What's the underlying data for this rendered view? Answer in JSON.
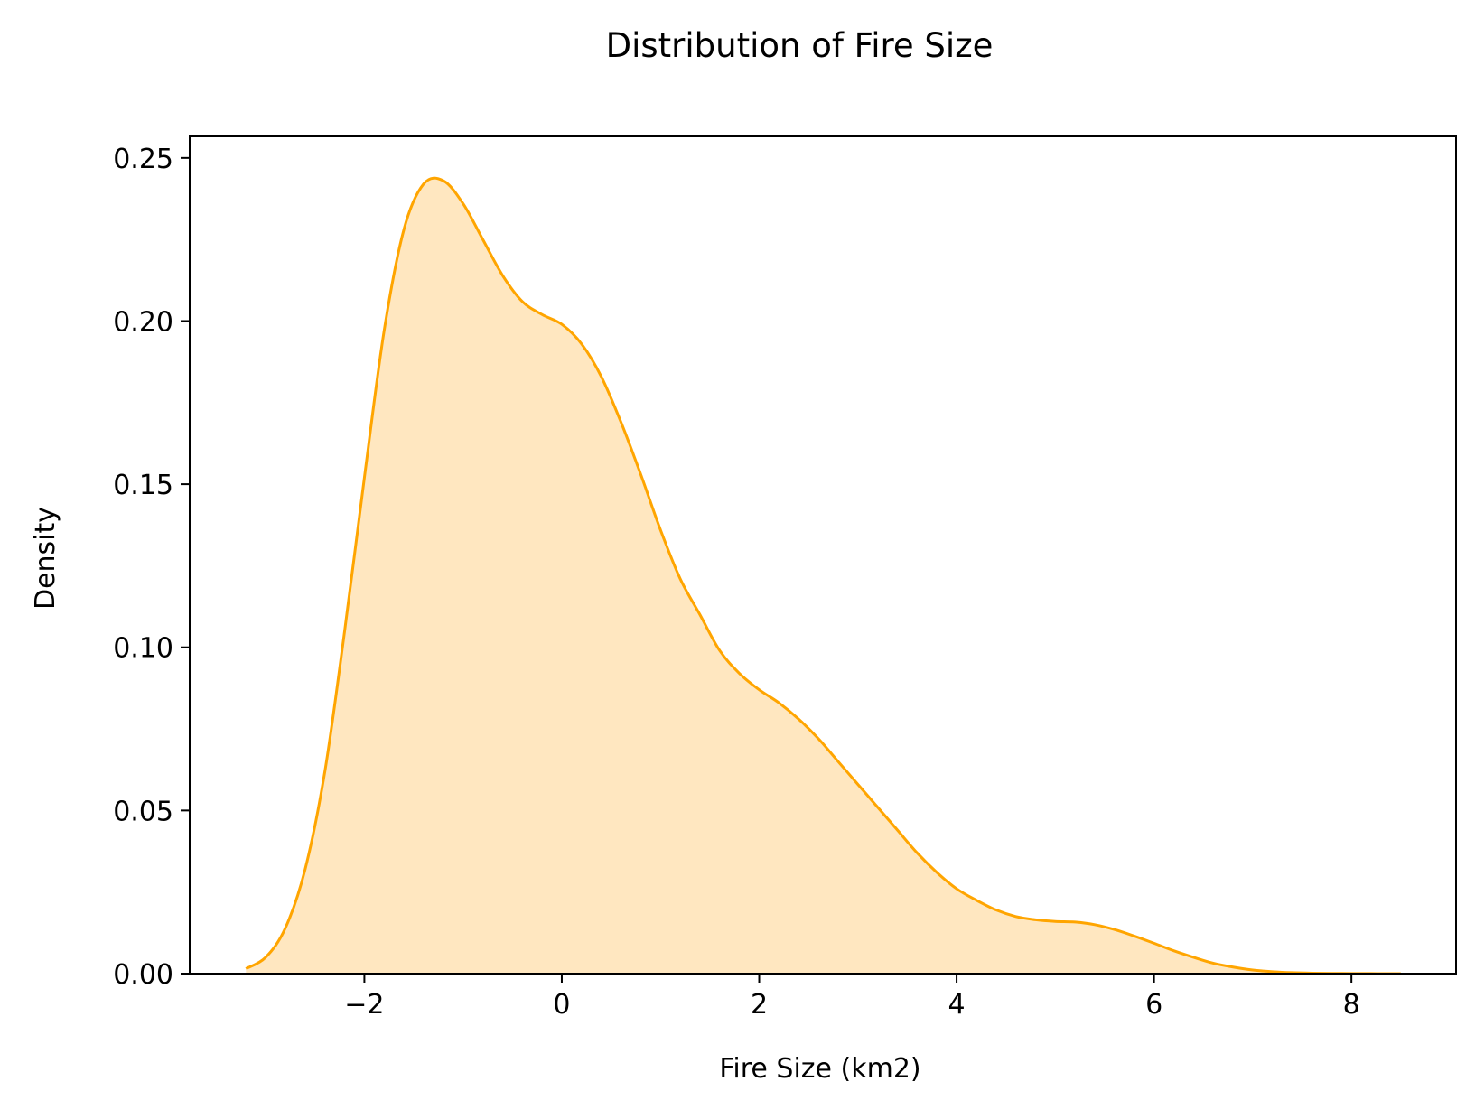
{
  "chart_data": {
    "type": "area",
    "title": "Distribution of Fire Size",
    "xlabel": "Fire Size (km2)",
    "ylabel": "Density",
    "xlim": [
      -3.77,
      9.06
    ],
    "ylim": [
      0.0,
      0.2566
    ],
    "xticks": [
      -2,
      0,
      2,
      4,
      6,
      8
    ],
    "xtick_labels": [
      "−2",
      "0",
      "2",
      "4",
      "6",
      "8"
    ],
    "yticks": [
      0.0,
      0.05,
      0.1,
      0.15,
      0.2,
      0.25
    ],
    "ytick_labels": [
      "0.00",
      "0.05",
      "0.10",
      "0.15",
      "0.20",
      "0.25"
    ],
    "grid": false,
    "colors": {
      "line": "#FFA500",
      "fill": "#FFE7C0",
      "axes": "#000000"
    },
    "series": [
      {
        "x": [
          -3.2,
          -3.0,
          -2.8,
          -2.6,
          -2.4,
          -2.2,
          -2.0,
          -1.8,
          -1.6,
          -1.4,
          -1.2,
          -1.0,
          -0.8,
          -0.6,
          -0.4,
          -0.2,
          0.0,
          0.2,
          0.4,
          0.6,
          0.8,
          1.0,
          1.2,
          1.4,
          1.6,
          1.8,
          2.0,
          2.2,
          2.4,
          2.6,
          2.8,
          3.0,
          3.2,
          3.4,
          3.6,
          3.8,
          4.0,
          4.2,
          4.4,
          4.6,
          4.8,
          5.0,
          5.2,
          5.4,
          5.6,
          5.8,
          6.0,
          6.2,
          6.4,
          6.6,
          6.8,
          7.0,
          7.2,
          7.4,
          7.6,
          7.8,
          8.0,
          8.2,
          8.5
        ],
        "y": [
          0.0015,
          0.005,
          0.014,
          0.032,
          0.062,
          0.105,
          0.152,
          0.197,
          0.228,
          0.242,
          0.243,
          0.236,
          0.225,
          0.214,
          0.206,
          0.202,
          0.199,
          0.193,
          0.183,
          0.169,
          0.153,
          0.136,
          0.121,
          0.11,
          0.099,
          0.092,
          0.087,
          0.083,
          0.078,
          0.072,
          0.065,
          0.058,
          0.051,
          0.044,
          0.037,
          0.031,
          0.026,
          0.0225,
          0.0195,
          0.0175,
          0.0165,
          0.016,
          0.0158,
          0.015,
          0.0135,
          0.0115,
          0.0093,
          0.007,
          0.005,
          0.0032,
          0.002,
          0.0011,
          0.0006,
          0.0003,
          0.00015,
          8e-05,
          4e-05,
          2e-05,
          1e-05
        ]
      }
    ]
  }
}
